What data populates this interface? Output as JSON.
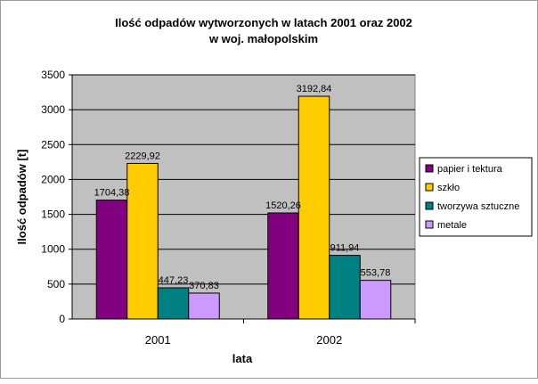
{
  "colors": {
    "plot_bg": "#c0c0c0",
    "grid": "#000000",
    "series": [
      "#800080",
      "#ffcc00",
      "#008080",
      "#cc99ff"
    ]
  },
  "chart_data": {
    "type": "bar",
    "title": "Ilość odpadów wytworzonych w latach 2001 oraz 2002",
    "subtitle": "w woj. małopolskim",
    "xlabel": "lata",
    "ylabel": "Ilość odpadów [t]",
    "ylim": [
      0,
      3500
    ],
    "yticks": [
      0,
      500,
      1000,
      1500,
      2000,
      2500,
      3000,
      3500
    ],
    "grid": true,
    "legend_position": "right",
    "categories": [
      "2001",
      "2002"
    ],
    "series": [
      {
        "name": "papier i tektura",
        "values": [
          1704.38,
          1520.26
        ],
        "labels": [
          "1704,38",
          "1520,26"
        ]
      },
      {
        "name": "szkło",
        "values": [
          2229.92,
          3192.84
        ],
        "labels": [
          "2229,92",
          "3192,84"
        ]
      },
      {
        "name": "tworzywa sztuczne",
        "values": [
          447.23,
          911.94
        ],
        "labels": [
          "447,23",
          "911,94"
        ]
      },
      {
        "name": "metale",
        "values": [
          370.83,
          553.78
        ],
        "labels": [
          "370,83",
          "553,78"
        ]
      }
    ]
  }
}
